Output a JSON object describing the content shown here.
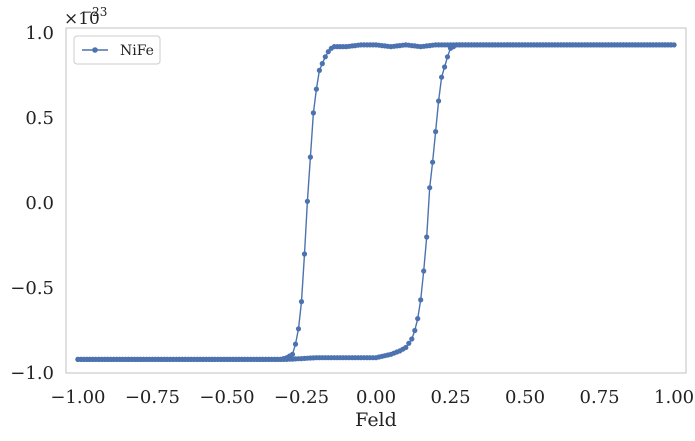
{
  "chart_data": {
    "type": "line",
    "title": "",
    "xlabel": "Feld",
    "ylabel": "",
    "y_multiplier_base": "×10",
    "y_multiplier_exponent": "−23",
    "xlim": [
      -1.04,
      1.04
    ],
    "ylim": [
      -1.0,
      1.0
    ],
    "x_ticks": [
      -1.0,
      -0.75,
      -0.5,
      -0.25,
      0.0,
      0.25,
      0.5,
      0.75,
      1.0
    ],
    "x_tick_labels": [
      "−1.00",
      "−0.75",
      "−0.50",
      "−0.25",
      "0.00",
      "0.25",
      "0.50",
      "0.75",
      "1.00"
    ],
    "y_ticks": [
      1.0,
      0.5,
      0.0,
      -0.5,
      -1.0
    ],
    "y_tick_labels": [
      "1.0",
      "0.5",
      "0.0",
      "−0.5",
      "−1.0"
    ],
    "grid": false,
    "legend_position": "top-left",
    "colors": {
      "series": "#4c72b0",
      "frame": "#cccccc",
      "text": "#222222"
    },
    "series": [
      {
        "name": "NiFe",
        "x": [
          -1.0,
          -0.8,
          -0.6,
          -0.4,
          -0.32,
          -0.3,
          -0.28,
          -0.27,
          -0.26,
          -0.25,
          -0.24,
          -0.23,
          -0.22,
          -0.21,
          -0.2,
          -0.19,
          -0.18,
          -0.17,
          -0.16,
          -0.15,
          -0.14,
          -0.12,
          -0.1,
          -0.05,
          0.0,
          0.05,
          0.1,
          0.15,
          0.2,
          0.25,
          0.3,
          0.5,
          0.75,
          1.0,
          0.75,
          0.5,
          0.3,
          0.27,
          0.25,
          0.24,
          0.23,
          0.22,
          0.21,
          0.2,
          0.19,
          0.18,
          0.17,
          0.16,
          0.15,
          0.14,
          0.13,
          0.12,
          0.1,
          0.08,
          0.05,
          0.0,
          -0.1,
          -0.2,
          -0.3,
          -0.5,
          -0.75,
          -1.0
        ],
        "y": [
          -0.92,
          -0.92,
          -0.92,
          -0.92,
          -0.92,
          -0.91,
          -0.89,
          -0.83,
          -0.74,
          -0.58,
          -0.3,
          0.01,
          0.27,
          0.53,
          0.67,
          0.78,
          0.82,
          0.86,
          0.89,
          0.91,
          0.92,
          0.92,
          0.92,
          0.93,
          0.93,
          0.92,
          0.93,
          0.92,
          0.93,
          0.93,
          0.93,
          0.93,
          0.93,
          0.93,
          0.93,
          0.93,
          0.93,
          0.93,
          0.91,
          0.86,
          0.8,
          0.74,
          0.6,
          0.42,
          0.24,
          0.09,
          -0.2,
          -0.4,
          -0.57,
          -0.68,
          -0.75,
          -0.8,
          -0.85,
          -0.87,
          -0.89,
          -0.91,
          -0.91,
          -0.91,
          -0.92,
          -0.92,
          -0.92,
          -0.92
        ]
      }
    ]
  }
}
